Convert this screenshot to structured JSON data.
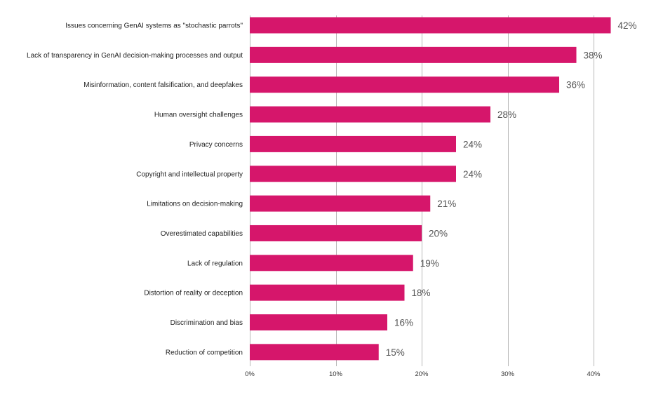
{
  "chart_data": {
    "type": "bar",
    "orientation": "horizontal",
    "categories": [
      "Issues concerning GenAI systems as \"stochastic parrots\"",
      "Lack of transparency in GenAI decision-making processes and output",
      "Misinformation, content falsification, and deepfakes",
      "Human oversight challenges",
      "Privacy concerns",
      "Copyright and intellectual property",
      "Limitations on decision-making",
      "Overestimated capabilities",
      "Lack of regulation",
      "Distortion of reality or deception",
      "Discrimination and bias",
      "Reduction of competition"
    ],
    "values": [
      42,
      38,
      36,
      28,
      24,
      24,
      21,
      20,
      19,
      18,
      16,
      15
    ],
    "value_labels": [
      "42%",
      "38%",
      "36%",
      "28%",
      "24%",
      "24%",
      "21%",
      "20%",
      "19%",
      "18%",
      "16%",
      "15%"
    ],
    "xlim": [
      0,
      42
    ],
    "xticks": [
      0,
      10,
      20,
      30,
      40
    ],
    "xtick_labels": [
      "0%",
      "10%",
      "20%",
      "30%",
      "40%"
    ],
    "grid": true,
    "bar_color": "#d6166b",
    "title": "",
    "xlabel": "",
    "ylabel": ""
  }
}
